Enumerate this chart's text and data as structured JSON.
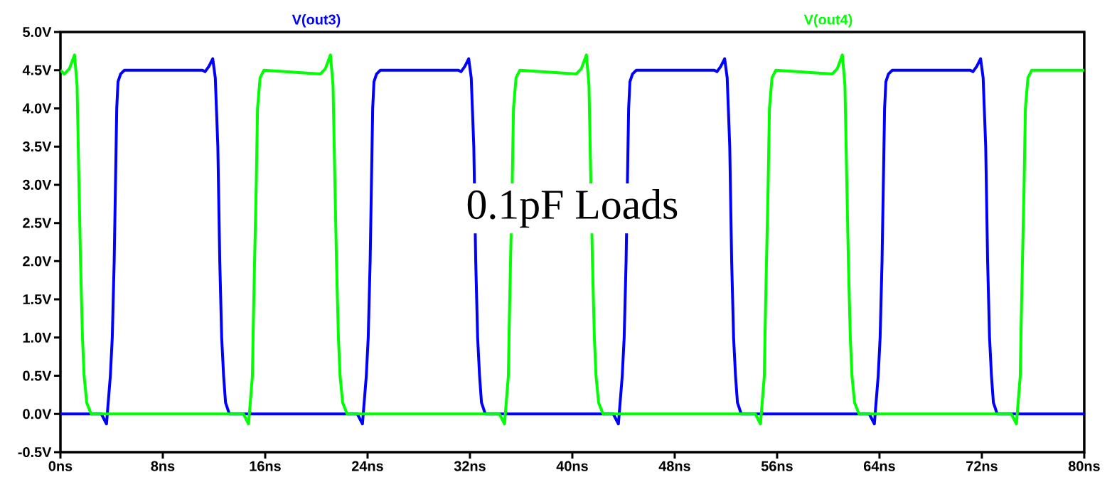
{
  "chart_data": {
    "type": "line",
    "annotations": [
      "0.1pF Loads"
    ],
    "xlim": [
      0,
      80
    ],
    "ylim": [
      -0.5,
      5.0
    ],
    "xticks": [
      {
        "value": 0,
        "label": "0ns"
      },
      {
        "value": 8,
        "label": "8ns"
      },
      {
        "value": 16,
        "label": "16ns"
      },
      {
        "value": 24,
        "label": "24ns"
      },
      {
        "value": 32,
        "label": "32ns"
      },
      {
        "value": 40,
        "label": "40ns"
      },
      {
        "value": 48,
        "label": "48ns"
      },
      {
        "value": 56,
        "label": "56ns"
      },
      {
        "value": 64,
        "label": "64ns"
      },
      {
        "value": 72,
        "label": "72ns"
      },
      {
        "value": 80,
        "label": "80ns"
      }
    ],
    "yticks": [
      {
        "value": -0.5,
        "label": "-0.5V"
      },
      {
        "value": 0,
        "label": "0.0V"
      },
      {
        "value": 0.5,
        "label": "0.5V"
      },
      {
        "value": 1.0,
        "label": "1.0V"
      },
      {
        "value": 1.5,
        "label": "1.5V"
      },
      {
        "value": 2.0,
        "label": "2.0V"
      },
      {
        "value": 2.5,
        "label": "2.5V"
      },
      {
        "value": 3.0,
        "label": "3.0V"
      },
      {
        "value": 3.5,
        "label": "3.5V"
      },
      {
        "value": 4.0,
        "label": "4.0V"
      },
      {
        "value": 4.5,
        "label": "4.5V"
      },
      {
        "value": 5.0,
        "label": "5.0V"
      }
    ],
    "series": [
      {
        "name": "V(out3)",
        "color": "#0000ff",
        "x": [
          0,
          3.2,
          3.6,
          3.9,
          4.05,
          4.2,
          4.3,
          4.4,
          4.5,
          4.7,
          5.0,
          11.1,
          11.3,
          11.6,
          11.9,
          12.1,
          12.3,
          12.45,
          12.6,
          12.75,
          12.9,
          13.2,
          23.2,
          23.6,
          23.9,
          24.05,
          24.2,
          24.3,
          24.4,
          24.5,
          24.7,
          25.0,
          31.1,
          31.3,
          31.6,
          31.9,
          32.1,
          32.3,
          32.45,
          32.6,
          32.75,
          32.9,
          33.2,
          43.2,
          43.6,
          43.9,
          44.05,
          44.2,
          44.3,
          44.4,
          44.5,
          44.7,
          45.0,
          51.1,
          51.3,
          51.6,
          51.9,
          52.1,
          52.3,
          52.45,
          52.6,
          52.75,
          52.9,
          53.2,
          63.2,
          63.6,
          63.9,
          64.05,
          64.2,
          64.3,
          64.4,
          64.5,
          64.7,
          65.0,
          71.1,
          71.3,
          71.6,
          71.9,
          72.1,
          72.3,
          72.45,
          72.6,
          72.75,
          72.9,
          73.2,
          80
        ],
        "values": [
          0,
          0,
          -0.13,
          0.5,
          1.0,
          2.0,
          3.0,
          4.0,
          4.35,
          4.45,
          4.5,
          4.5,
          4.48,
          4.55,
          4.65,
          4.4,
          3.5,
          2.0,
          1.0,
          0.5,
          0.15,
          0.0,
          0,
          -0.13,
          0.5,
          1.0,
          2.0,
          3.0,
          4.0,
          4.35,
          4.45,
          4.5,
          4.5,
          4.48,
          4.55,
          4.65,
          4.4,
          3.5,
          2.0,
          1.0,
          0.5,
          0.15,
          0.0,
          0,
          -0.13,
          0.5,
          1.0,
          2.0,
          3.0,
          4.0,
          4.35,
          4.45,
          4.5,
          4.5,
          4.48,
          4.55,
          4.65,
          4.4,
          3.5,
          2.0,
          1.0,
          0.5,
          0.15,
          0.0,
          0,
          -0.13,
          0.5,
          1.0,
          2.0,
          3.0,
          4.0,
          4.35,
          4.45,
          4.5,
          4.5,
          4.48,
          4.55,
          4.65,
          4.4,
          3.5,
          2.0,
          1.0,
          0.5,
          0.15,
          0.0,
          0
        ]
      },
      {
        "name": "V(out4)",
        "color": "#00ff00",
        "x": [
          0,
          0.3,
          0.7,
          1.1,
          1.3,
          1.45,
          1.57,
          1.72,
          1.85,
          2.05,
          2.4,
          14.3,
          14.7,
          15.0,
          15.05,
          15.17,
          15.3,
          15.4,
          15.6,
          15.9,
          20.3,
          20.7,
          21.1,
          21.3,
          21.45,
          21.57,
          21.72,
          21.85,
          22.05,
          22.4,
          34.3,
          34.7,
          35.0,
          35.05,
          35.17,
          35.3,
          35.4,
          35.6,
          35.9,
          40.3,
          40.7,
          41.1,
          41.3,
          41.45,
          41.57,
          41.72,
          41.85,
          42.05,
          42.4,
          54.3,
          54.7,
          55.0,
          55.05,
          55.17,
          55.3,
          55.4,
          55.6,
          55.9,
          60.3,
          60.7,
          61.1,
          61.3,
          61.45,
          61.57,
          61.72,
          61.85,
          62.05,
          62.4,
          74.3,
          74.7,
          75.0,
          75.05,
          75.17,
          75.3,
          75.4,
          75.6,
          75.9,
          80
        ],
        "values": [
          4.5,
          4.45,
          4.52,
          4.7,
          4.3,
          3.0,
          2.0,
          1.0,
          0.5,
          0.15,
          0.0,
          0.0,
          -0.13,
          0.5,
          1.0,
          2.0,
          3.0,
          4.0,
          4.4,
          4.5,
          4.45,
          4.52,
          4.7,
          4.3,
          3.0,
          2.0,
          1.0,
          0.5,
          0.15,
          0.0,
          0.0,
          -0.13,
          0.5,
          1.0,
          2.0,
          3.0,
          4.0,
          4.4,
          4.5,
          4.45,
          4.52,
          4.7,
          4.3,
          3.0,
          2.0,
          1.0,
          0.5,
          0.15,
          0.0,
          0.0,
          -0.13,
          0.5,
          1.0,
          2.0,
          3.0,
          4.0,
          4.4,
          4.5,
          4.45,
          4.52,
          4.7,
          4.3,
          3.0,
          2.0,
          1.0,
          0.5,
          0.15,
          0.0,
          0.0,
          -0.13,
          0.5,
          1.0,
          2.0,
          3.0,
          4.0,
          4.4,
          4.5,
          4.5
        ]
      }
    ]
  }
}
